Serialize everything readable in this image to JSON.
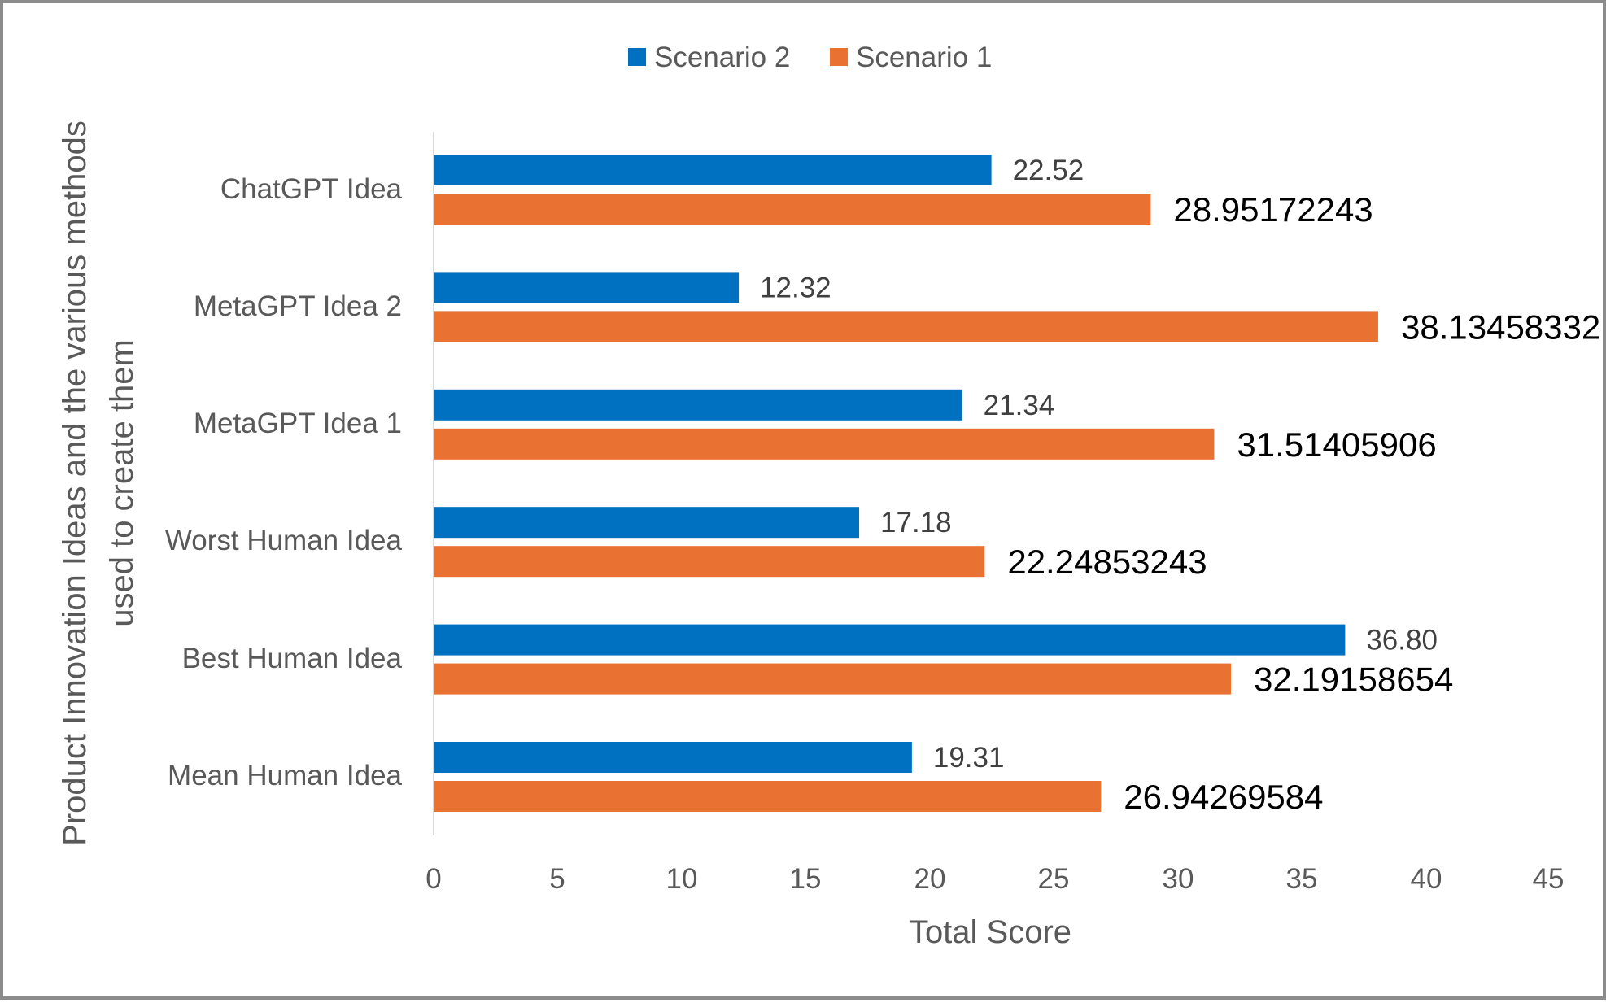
{
  "chart_data": {
    "type": "bar",
    "orientation": "horizontal",
    "categories": [
      "ChatGPT Idea",
      "MetaGPT Idea 2",
      "MetaGPT Idea 1",
      "Worst Human Idea",
      "Best Human Idea",
      "Mean Human Idea"
    ],
    "series": [
      {
        "name": "Scenario 2",
        "color": "#0070C0",
        "values": [
          22.52,
          12.32,
          21.34,
          17.18,
          36.8,
          19.31
        ],
        "labels": [
          "22.52",
          "12.32",
          "21.34",
          "17.18",
          "36.80",
          "19.31"
        ]
      },
      {
        "name": "Scenario 1",
        "color": "#E97132",
        "values": [
          28.95172243,
          38.13458332,
          31.51405906,
          22.24853243,
          32.19158654,
          26.94269584
        ],
        "labels": [
          "28.95172243",
          "38.13458332",
          "31.51405906",
          "22.24853243",
          "32.19158654",
          "26.94269584"
        ]
      }
    ],
    "xlabel": "Total Score",
    "ylabel_lines": [
      "Product Innovation Ideas and the various methods",
      "used to create them"
    ],
    "xlim": [
      0,
      45
    ],
    "xticks": [
      "0",
      "5",
      "10",
      "15",
      "20",
      "25",
      "30",
      "35",
      "40",
      "45"
    ],
    "grid": false,
    "legend": "top-center"
  }
}
